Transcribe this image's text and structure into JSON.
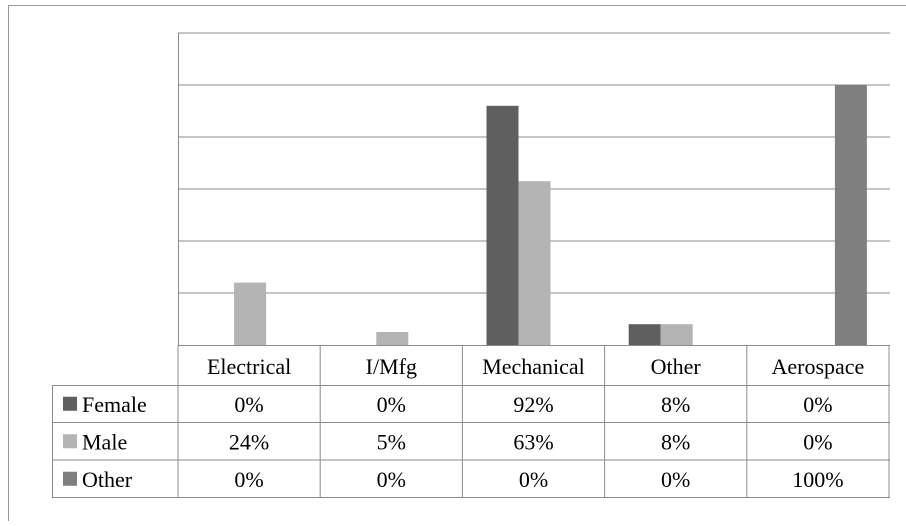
{
  "chart_data": {
    "type": "bar",
    "categories": [
      "Electrical",
      "I/Mfg",
      "Mechanical",
      "Other",
      "Aerospace"
    ],
    "series": [
      {
        "name": "Female",
        "values": [
          0,
          0,
          92,
          8,
          0
        ],
        "labels": [
          "0%",
          "0%",
          "92%",
          "8%",
          "0%"
        ],
        "color": "#5f5f5f"
      },
      {
        "name": "Male",
        "values": [
          24,
          5,
          63,
          8,
          0
        ],
        "labels": [
          "24%",
          "5%",
          "63%",
          "8%",
          "0%"
        ],
        "color": "#b4b4b4"
      },
      {
        "name": "Other",
        "values": [
          0,
          0,
          0,
          0,
          100
        ],
        "labels": [
          "0%",
          "0%",
          "0%",
          "0%",
          "100%"
        ],
        "color": "#7f7f7f"
      }
    ],
    "ylim": [
      0,
      100
    ],
    "grid": true,
    "legend": "data-table-left",
    "title": "",
    "xlabel": "",
    "ylabel": ""
  }
}
